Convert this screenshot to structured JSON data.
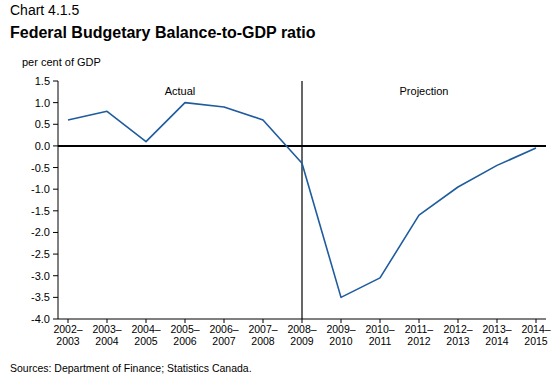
{
  "chart_data": {
    "type": "line",
    "chart_label": "Chart 4.1.5",
    "title": "Federal Budgetary Balance-to-GDP ratio",
    "y_label": "per cent of GDP",
    "source": "Sources: Department of Finance; Statistics Canada.",
    "annotations": [
      {
        "text": "Actual"
      },
      {
        "text": "Projection"
      }
    ],
    "divider": "2008–2009",
    "categories": [
      "2002–2003",
      "2003–2004",
      "2004–2005",
      "2005–2006",
      "2006–2007",
      "2007–2008",
      "2008–2009",
      "2009–2010",
      "2010–2011",
      "2011–2012",
      "2012–2013",
      "2013–2014",
      "2014–2015"
    ],
    "values": [
      0.6,
      0.8,
      0.1,
      1.0,
      0.9,
      0.6,
      -0.4,
      -3.5,
      -3.05,
      -1.6,
      -0.95,
      -0.45,
      -0.05
    ],
    "color": "#1f5c9e",
    "ylim": [
      -4,
      1.5
    ],
    "yticks": [
      {
        "value": -4,
        "label": "-4.0"
      },
      -3.5,
      {
        "value": -3,
        "label": "-3.0"
      },
      -2.5,
      {
        "value": -2,
        "label": "-2.0"
      },
      -1.5,
      {
        "value": -1,
        "label": "-1.0"
      },
      -0.5,
      {
        "value": 0,
        "label": "0.0"
      },
      0.5,
      {
        "value": 1,
        "label": "1.0"
      },
      1.5
    ],
    "grid": false
  }
}
